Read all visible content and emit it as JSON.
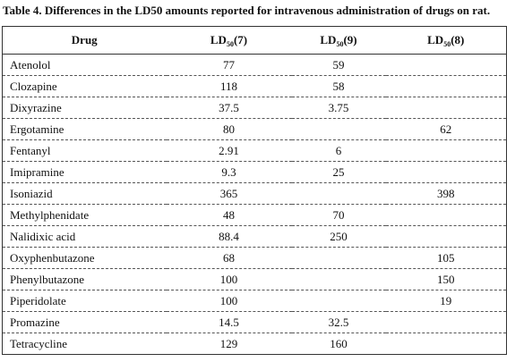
{
  "header": {
    "title": "Table 4. Differences in the LD50 amounts reported for intravenous administration of drugs on rat."
  },
  "table": {
    "columns": [
      {
        "text": "Drug"
      },
      {
        "text": "LD",
        "sub": "50",
        "ref": "(7)"
      },
      {
        "text": "LD",
        "sub": "50",
        "ref": "(9)"
      },
      {
        "text": "LD",
        "sub": "50",
        "ref": "(8)"
      }
    ],
    "rows": [
      [
        "Atenolol",
        77,
        59,
        null
      ],
      [
        "Clozapine",
        118,
        58,
        null
      ],
      [
        "Dixyrazine",
        37.5,
        3.75,
        null
      ],
      [
        "Ergotamine",
        80,
        null,
        62
      ],
      [
        "Fentanyl",
        2.91,
        6,
        null
      ],
      [
        "Imipramine",
        9.3,
        25,
        null
      ],
      [
        "Isoniazid",
        365,
        null,
        398
      ],
      [
        "Methylphenidate",
        48,
        70,
        null
      ],
      [
        "Nalidixic acid",
        88.4,
        250,
        null
      ],
      [
        "Oxyphenbutazone",
        68,
        null,
        105
      ],
      [
        "Phenylbutazone",
        100,
        null,
        150
      ],
      [
        "Piperidolate",
        100,
        null,
        19
      ],
      [
        "Promazine",
        14.5,
        32.5,
        null
      ],
      [
        "Tetracycline",
        129,
        160,
        null
      ]
    ]
  }
}
